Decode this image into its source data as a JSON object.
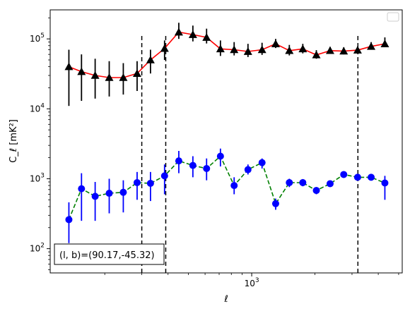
{
  "chart_data": {
    "type": "scatter",
    "xscale": "log",
    "yscale": "log",
    "xlim": [
      110,
      5200
    ],
    "ylim": [
      45,
      260000
    ],
    "xlabel": "ℓ",
    "ylabel": "C_ℓ [mK²]",
    "xticks": [
      {
        "value": 1000,
        "label": "10³"
      }
    ],
    "yticks": [
      {
        "value": 100,
        "label": "10²"
      },
      {
        "value": 1000,
        "label": "10³"
      },
      {
        "value": 10000,
        "label": "10⁴"
      },
      {
        "value": 100000,
        "label": "10⁵"
      }
    ],
    "legend": "top-right",
    "grid": false,
    "vlines": [
      300,
      390,
      3200
    ],
    "annotation": "(l, b)=(90.17,-45.32)",
    "series": [
      {
        "marker": "triangle",
        "color": "#000000",
        "line_color": "#ff0000",
        "line_style": "solid",
        "x": [
          135,
          155,
          180,
          210,
          245,
          285,
          330,
          385,
          450,
          525,
          610,
          710,
          825,
          960,
          1120,
          1300,
          1510,
          1750,
          2030,
          2360,
          2740,
          3190,
          3700,
          4300
        ],
        "y": [
          40000,
          34000,
          30000,
          28000,
          28000,
          32000,
          50000,
          73000,
          125000,
          115000,
          105000,
          72000,
          70000,
          66000,
          70000,
          85000,
          68000,
          72000,
          59000,
          68000,
          67000,
          69000,
          78000,
          85000
        ],
        "yerr_low": [
          11000,
          13000,
          14000,
          15000,
          16000,
          18000,
          32000,
          50000,
          100000,
          92000,
          86000,
          57000,
          58000,
          55000,
          59000,
          74000,
          58000,
          62000,
          52000,
          61000,
          60000,
          62000,
          72000,
          80000
        ],
        "yerr_high": [
          70000,
          60000,
          52000,
          48000,
          45000,
          48000,
          70000,
          95000,
          170000,
          155000,
          140000,
          95000,
          90000,
          85000,
          88000,
          100000,
          82000,
          85000,
          69000,
          77000,
          76000,
          78000,
          90000,
          105000
        ]
      },
      {
        "marker": "circle",
        "color": "#0000ff",
        "line_color": "#008000",
        "line_style": "dashed",
        "x": [
          135,
          155,
          180,
          210,
          245,
          285,
          330,
          385,
          450,
          525,
          610,
          710,
          825,
          960,
          1120,
          1300,
          1510,
          1750,
          2030,
          2360,
          2740,
          3190,
          3700,
          4300
        ],
        "y": [
          260,
          720,
          560,
          620,
          640,
          880,
          860,
          1100,
          1800,
          1550,
          1400,
          2100,
          800,
          1350,
          1700,
          440,
          880,
          880,
          680,
          850,
          1150,
          1050,
          1050,
          870
        ],
        "yerr_low": [
          120,
          250,
          250,
          320,
          330,
          500,
          480,
          600,
          1200,
          1050,
          950,
          1500,
          600,
          1150,
          1400,
          360,
          760,
          780,
          600,
          780,
          1050,
          980,
          950,
          500
        ],
        "yerr_high": [
          460,
          1200,
          900,
          1000,
          950,
          1250,
          1250,
          1600,
          2500,
          2100,
          1950,
          2700,
          1050,
          1600,
          1950,
          520,
          1000,
          990,
          760,
          930,
          1250,
          1120,
          1150,
          1100
        ]
      }
    ]
  }
}
